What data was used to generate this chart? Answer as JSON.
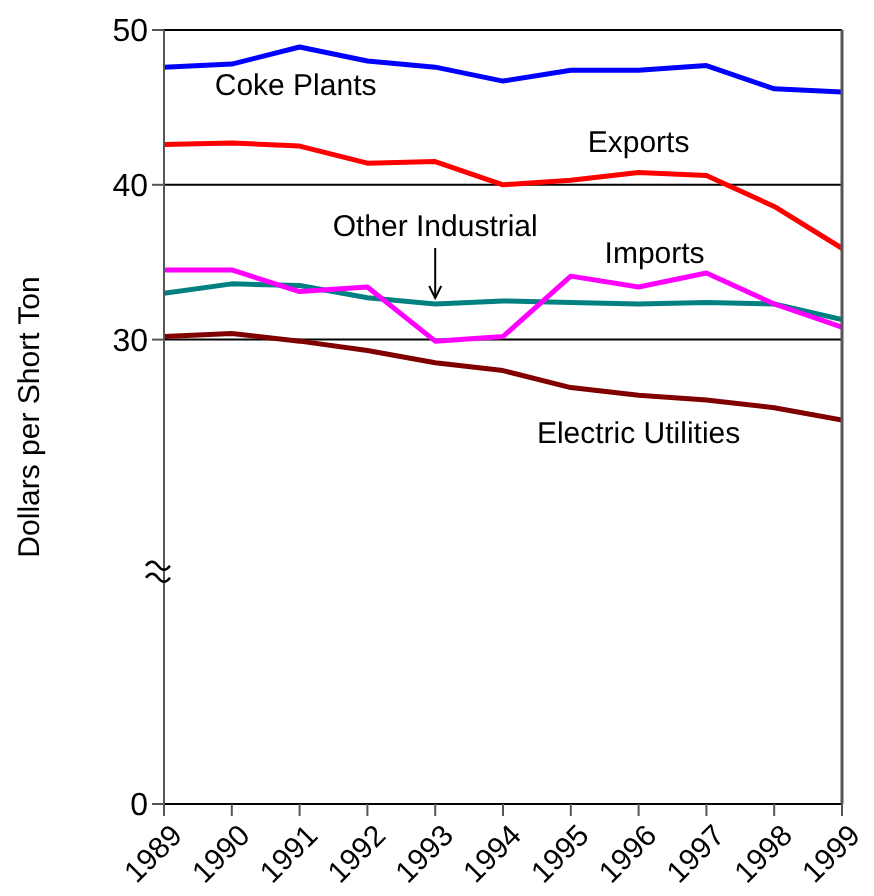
{
  "chart_data": {
    "type": "line",
    "ylabel": "Dollars per Short Ton",
    "x": [
      1989,
      1990,
      1991,
      1992,
      1993,
      1994,
      1995,
      1996,
      1997,
      1998,
      1999
    ],
    "xlim": [
      1989,
      1999
    ],
    "xticks": [
      1989,
      1990,
      1991,
      1992,
      1993,
      1994,
      1995,
      1996,
      1997,
      1998,
      1999
    ],
    "ylim": [
      0,
      50
    ],
    "yticks": [
      0,
      30,
      40,
      50
    ],
    "grid": "y",
    "legend": false,
    "marker": "none",
    "line_style": "solid",
    "series": [
      {
        "name": "Coke Plants",
        "color": "#0000ff",
        "values": [
          47.6,
          47.8,
          48.9,
          48.0,
          47.6,
          46.7,
          47.4,
          47.4,
          47.7,
          46.2,
          46.0
        ]
      },
      {
        "name": "Exports",
        "color": "#ff0000",
        "values": [
          42.6,
          42.7,
          42.5,
          41.4,
          41.5,
          40.0,
          40.3,
          40.8,
          40.6,
          38.6,
          35.9
        ]
      },
      {
        "name": "Other Industrial",
        "color": "#008080",
        "values": [
          33.0,
          33.6,
          33.5,
          32.7,
          32.3,
          32.5,
          32.4,
          32.3,
          32.4,
          32.3,
          31.3
        ]
      },
      {
        "name": "Imports",
        "color": "#ff00ff",
        "values": [
          34.5,
          34.5,
          33.1,
          33.4,
          29.9,
          30.2,
          34.1,
          33.4,
          34.3,
          32.3,
          30.8
        ]
      },
      {
        "name": "Electric Utilities",
        "color": "#800000",
        "values": [
          30.2,
          30.4,
          29.9,
          29.3,
          28.5,
          28.0,
          26.9,
          26.4,
          26.1,
          25.6,
          24.8
        ]
      }
    ]
  }
}
